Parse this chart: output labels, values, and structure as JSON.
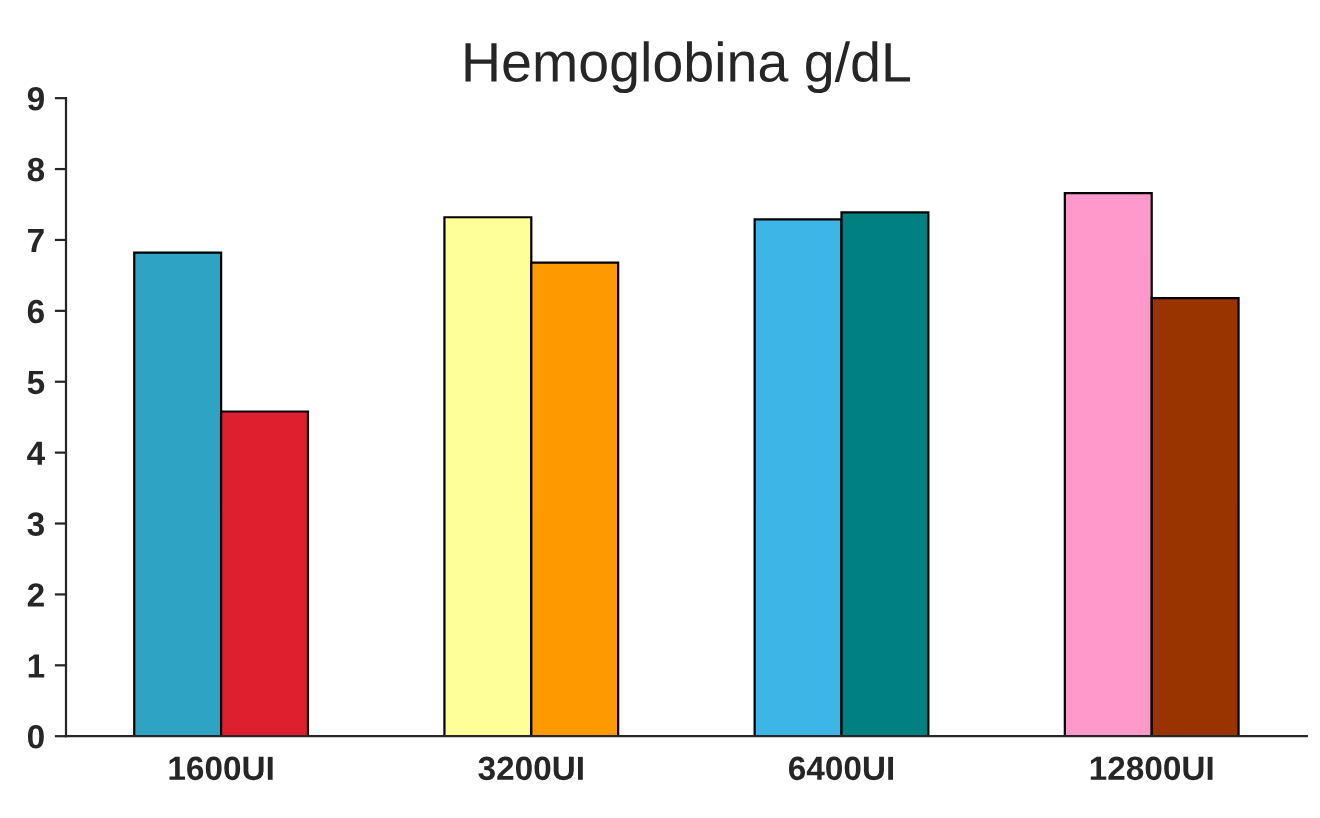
{
  "chart_data": {
    "type": "bar",
    "title": "Hemoglobina g/dL",
    "categories": [
      "1600UI",
      "3200UI",
      "6400UI",
      "12800UI"
    ],
    "series": [
      {
        "colors": [
          "#2ea3c4",
          "#ffff99",
          "#3db5e6",
          "#ff99cc"
        ],
        "values": [
          6.82,
          7.32,
          7.29,
          7.66
        ]
      },
      {
        "colors": [
          "#dd1f2e",
          "#ff9900",
          "#008080",
          "#993300"
        ],
        "values": [
          4.58,
          6.68,
          7.39,
          6.18
        ]
      }
    ],
    "ylim": [
      0,
      9
    ],
    "yticks": [
      0,
      1,
      2,
      3,
      4,
      5,
      6,
      7,
      8,
      9
    ],
    "grid": false,
    "legend": false
  }
}
